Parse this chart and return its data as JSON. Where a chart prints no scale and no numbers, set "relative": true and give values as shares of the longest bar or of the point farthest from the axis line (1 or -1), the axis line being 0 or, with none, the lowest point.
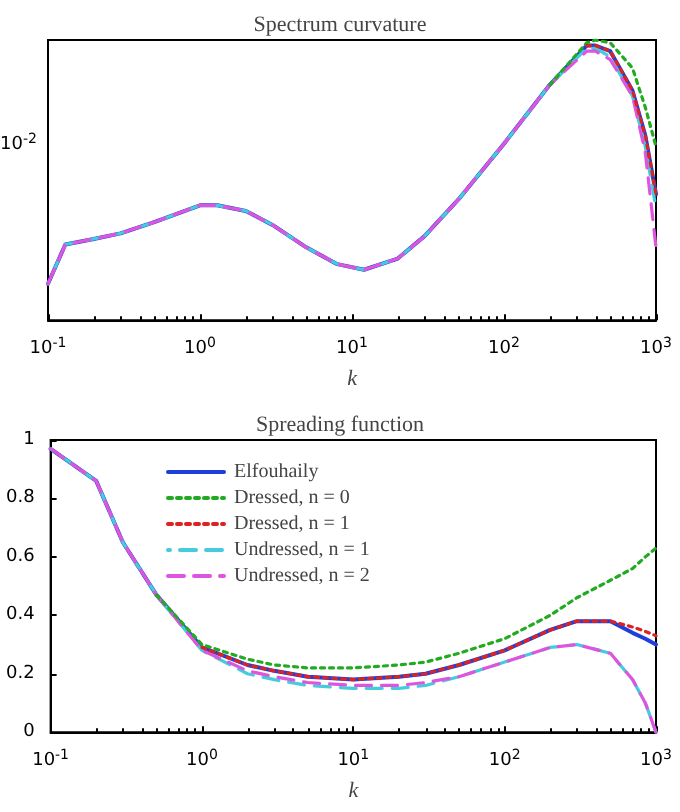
{
  "chart_data": [
    {
      "type": "line",
      "title": "Spectrum curvature",
      "xlabel": "k",
      "relative": true,
      "log": "x",
      "grid": false,
      "legend": false,
      "marker": "none",
      "annotations": [
        "10$^{-2}$"
      ],
      "x": [
        0.1,
        0.13,
        0.2,
        0.3,
        0.5,
        1,
        1.3,
        2,
        3,
        5,
        8,
        12,
        20,
        30,
        50,
        100,
        200,
        350,
        400,
        500,
        700,
        850,
        1000
      ],
      "xlim": [
        0.1,
        1000
      ],
      "xticks": [
        {
          "value": 0.1,
          "label": "10$^{-1}$"
        },
        {
          "value": 1,
          "label": "10$^{0}$"
        },
        {
          "value": 10,
          "label": "10$^{1}$"
        },
        {
          "value": 100,
          "label": "10$^{2}$"
        },
        {
          "value": 1000,
          "label": "10$^{3}$"
        }
      ],
      "series": [
        {
          "color": "#1f3fdb",
          "line_style": "solid",
          "values": [
            0.13,
            0.27,
            0.29,
            0.31,
            0.35,
            0.41,
            0.41,
            0.39,
            0.34,
            0.26,
            0.2,
            0.18,
            0.22,
            0.3,
            0.43,
            0.63,
            0.84,
            0.98,
            0.98,
            0.96,
            0.82,
            0.66,
            0.45
          ]
        },
        {
          "color": "#22aa22",
          "line_style": "dotted",
          "values": [
            null,
            null,
            null,
            null,
            null,
            null,
            null,
            null,
            null,
            null,
            null,
            null,
            null,
            null,
            null,
            null,
            0.84,
            0.99,
            1,
            0.99,
            0.9,
            0.76,
            0.62
          ]
        },
        {
          "color": "#dd2222",
          "line_style": "dotted",
          "values": [
            null,
            null,
            null,
            null,
            null,
            null,
            null,
            null,
            null,
            null,
            null,
            null,
            null,
            null,
            null,
            null,
            null,
            0.98,
            0.98,
            0.96,
            0.82,
            0.66,
            0.45
          ]
        },
        {
          "color": "#44ccdd",
          "line_style": "dashed",
          "values": [
            0.13,
            0.27,
            0.29,
            0.31,
            0.35,
            0.41,
            0.41,
            0.39,
            0.34,
            0.26,
            0.2,
            0.18,
            0.22,
            0.3,
            0.43,
            0.63,
            0.84,
            0.97,
            0.97,
            0.94,
            0.8,
            0.62,
            0.4
          ]
        },
        {
          "color": "#dd55dd",
          "line_style": "dashed",
          "values": [
            0.13,
            0.27,
            0.29,
            0.31,
            0.35,
            0.41,
            0.41,
            0.39,
            0.34,
            0.26,
            0.2,
            0.18,
            0.22,
            0.3,
            0.43,
            0.63,
            0.84,
            0.96,
            0.96,
            0.93,
            0.8,
            0.6,
            0.26
          ]
        }
      ]
    },
    {
      "type": "line",
      "title": "Spreading function",
      "xlabel": "k",
      "log": "x",
      "grid": false,
      "legend": "top",
      "marker": "none",
      "x": [
        0.1,
        0.2,
        0.3,
        0.5,
        1,
        2,
        3,
        5,
        10,
        20,
        30,
        50,
        100,
        200,
        300,
        500,
        700,
        850,
        1000
      ],
      "xlim": [
        0.1,
        1000
      ],
      "ylim": [
        0,
        1
      ],
      "xticks": [
        {
          "value": 0.1,
          "label": "10$^{-1}$"
        },
        {
          "value": 1,
          "label": "10$^{0}$"
        },
        {
          "value": 10,
          "label": "10$^{1}$"
        },
        {
          "value": 100,
          "label": "10$^{2}$"
        },
        {
          "value": 1000,
          "label": "10$^{3}$"
        }
      ],
      "yticks": [
        0,
        0.2,
        0.4,
        0.6,
        0.8,
        1
      ],
      "series": [
        {
          "name": "Elfouhaily",
          "color": "#1f3fdb",
          "line_style": "solid",
          "values": [
            0.97,
            0.86,
            0.65,
            0.47,
            0.29,
            0.23,
            0.21,
            0.19,
            0.18,
            0.19,
            0.2,
            0.23,
            0.28,
            0.35,
            0.38,
            0.38,
            0.34,
            0.32,
            0.3
          ]
        },
        {
          "name": "Dressed, n = 0",
          "color": "#22aa22",
          "line_style": "dotted",
          "values": [
            null,
            null,
            null,
            0.47,
            0.3,
            0.25,
            0.23,
            0.22,
            0.22,
            0.23,
            0.24,
            0.27,
            0.32,
            0.4,
            0.46,
            0.52,
            0.56,
            0.6,
            0.63
          ]
        },
        {
          "name": "Dressed, n = 1",
          "color": "#dd2222",
          "line_style": "dotted",
          "values": [
            null,
            null,
            null,
            null,
            0.29,
            0.23,
            0.21,
            0.19,
            0.18,
            0.19,
            0.2,
            0.23,
            0.28,
            0.35,
            0.38,
            0.38,
            0.36,
            0.345,
            0.33
          ]
        },
        {
          "name": "Undressed, n = 1",
          "color": "#44ccdd",
          "line_style": "dashed",
          "values": [
            0.97,
            0.86,
            0.65,
            0.47,
            0.28,
            0.2,
            0.18,
            0.16,
            0.15,
            0.15,
            0.16,
            0.19,
            0.24,
            0.29,
            0.3,
            0.27,
            0.18,
            0.1,
            0
          ]
        },
        {
          "name": "Undressed, n = 2",
          "color": "#dd55dd",
          "line_style": "dashed",
          "values": [
            0.97,
            0.86,
            0.65,
            0.47,
            0.28,
            0.21,
            0.19,
            0.17,
            0.16,
            0.16,
            0.17,
            0.19,
            0.24,
            0.29,
            0.3,
            0.27,
            0.18,
            0.1,
            0
          ]
        }
      ]
    }
  ]
}
